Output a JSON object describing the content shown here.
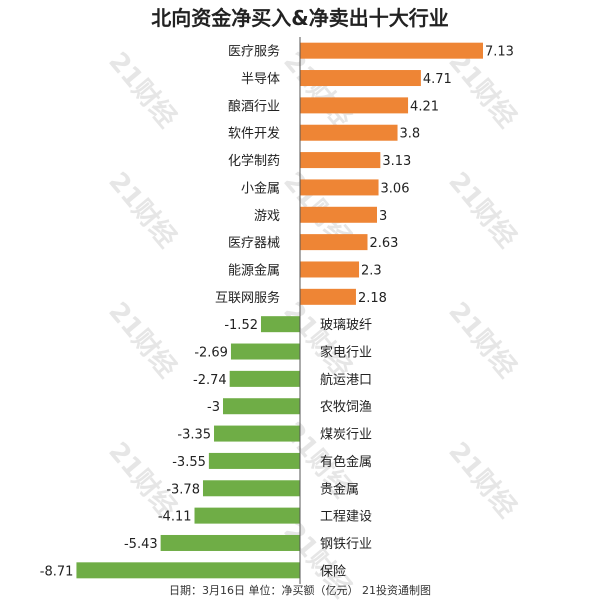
{
  "title": "北向资金净买入&净卖出十大行业",
  "footnote": "日期：3月16日 单位：净买额（亿元） 21投资通制图",
  "watermark": "21财经",
  "colors": {
    "positive": "#EE8535",
    "negative": "#6FAD46",
    "axis": "#555555",
    "text": "#222222"
  },
  "chart_data": {
    "type": "bar",
    "orientation": "horizontal",
    "title": "北向资金净买入&净卖出十大行业",
    "categories": [
      "医疗服务",
      "半导体",
      "酿酒行业",
      "软件开发",
      "化学制药",
      "小金属",
      "游戏",
      "医疗器械",
      "能源金属",
      "互联网服务",
      "玻璃玻纤",
      "家电行业",
      "航运港口",
      "农牧饲渔",
      "煤炭行业",
      "有色金属",
      "贵金属",
      "工程建设",
      "钢铁行业",
      "保险"
    ],
    "values": [
      7.13,
      4.71,
      4.21,
      3.8,
      3.13,
      3.06,
      3,
      2.63,
      2.3,
      2.18,
      -1.52,
      -2.69,
      -2.74,
      -3,
      -3.35,
      -3.55,
      -3.78,
      -4.11,
      -5.43,
      -8.71
    ],
    "value_labels": [
      "7.13",
      "4.71",
      "4.21",
      "3.8",
      "3.13",
      "3.06",
      "3",
      "2.63",
      "2.3",
      "2.18",
      "-1.52",
      "-2.69",
      "-2.74",
      "-3",
      "-3.35",
      "-3.55",
      "-3.78",
      "-4.11",
      "-5.43",
      "-8.71"
    ],
    "xlim": [
      -8.71,
      7.13
    ],
    "grid": false,
    "legend": "none"
  }
}
